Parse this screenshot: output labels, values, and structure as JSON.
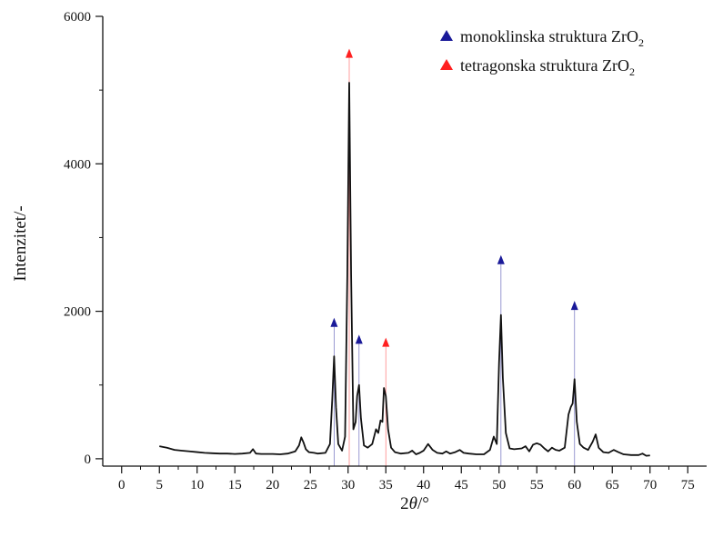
{
  "chart_data": {
    "type": "line",
    "xlabel_main": "2",
    "xlabel_theta": "θ",
    "xlabel_unit": "/°",
    "ylabel": "Intenzitet/-",
    "xlim": [
      -2.5,
      77.5
    ],
    "ylim": [
      -100,
      6000
    ],
    "xticks": [
      0,
      5,
      10,
      15,
      20,
      25,
      30,
      35,
      40,
      45,
      50,
      55,
      60,
      65,
      70,
      75
    ],
    "yticks": [
      0,
      2000,
      4000,
      6000
    ],
    "grid": false,
    "legend_position": "top-right",
    "legend": [
      {
        "label": "monoklinska struktura ZrO",
        "subscript": "2",
        "color": "#1a1a99",
        "marker": "triangle"
      },
      {
        "label": "tetragonska struktura ZrO",
        "subscript": "2",
        "color": "#ff2020",
        "marker": "triangle"
      }
    ],
    "series": [
      {
        "color": "#111111",
        "x": [
          5.0,
          6.0,
          7.0,
          8.0,
          9.0,
          10.0,
          11.0,
          12.0,
          13.0,
          14.0,
          15.0,
          16.0,
          17.0,
          17.4,
          17.8,
          18.5,
          20.0,
          21.0,
          22.0,
          23.0,
          23.5,
          23.8,
          24.1,
          24.4,
          24.8,
          25.5,
          26.0,
          27.0,
          27.6,
          27.9,
          28.15,
          28.4,
          28.7,
          29.2,
          29.6,
          29.9,
          30.15,
          30.4,
          30.7,
          31.0,
          31.2,
          31.45,
          31.7,
          32.1,
          32.6,
          33.2,
          33.7,
          34.0,
          34.3,
          34.55,
          34.75,
          35.0,
          35.3,
          35.7,
          36.2,
          37.0,
          38.0,
          38.5,
          39.0,
          39.5,
          40.0,
          40.6,
          41.2,
          41.8,
          42.5,
          43.0,
          43.5,
          44.2,
          44.8,
          45.3,
          46.0,
          47.0,
          48.0,
          48.8,
          49.3,
          49.7,
          50.0,
          50.25,
          50.5,
          50.9,
          51.4,
          52.0,
          53.0,
          53.5,
          54.0,
          54.5,
          55.0,
          55.5,
          56.0,
          56.5,
          57.0,
          57.5,
          58.0,
          58.7,
          59.2,
          59.5,
          59.75,
          60.0,
          60.3,
          60.7,
          61.2,
          61.8,
          62.4,
          62.8,
          63.2,
          63.8,
          64.5,
          65.2,
          65.8,
          66.5,
          67.5,
          68.5,
          69.0,
          69.5,
          70.0
        ],
        "y": [
          170,
          150,
          120,
          110,
          100,
          90,
          80,
          75,
          70,
          70,
          65,
          70,
          80,
          130,
          70,
          65,
          65,
          60,
          70,
          100,
          180,
          290,
          220,
          130,
          90,
          80,
          70,
          80,
          200,
          800,
          1390,
          700,
          200,
          110,
          300,
          2500,
          5100,
          2500,
          400,
          500,
          850,
          1000,
          550,
          180,
          150,
          200,
          400,
          350,
          520,
          500,
          960,
          850,
          400,
          150,
          90,
          70,
          80,
          110,
          60,
          80,
          110,
          200,
          120,
          80,
          70,
          100,
          70,
          90,
          120,
          80,
          70,
          60,
          60,
          120,
          300,
          200,
          1300,
          1950,
          1100,
          350,
          140,
          130,
          140,
          170,
          100,
          190,
          210,
          190,
          140,
          100,
          150,
          120,
          110,
          150,
          600,
          700,
          750,
          1080,
          500,
          200,
          150,
          120,
          230,
          330,
          150,
          90,
          80,
          120,
          90,
          60,
          50,
          50,
          70,
          40,
          45
        ]
      }
    ],
    "markers": [
      {
        "x": 28.15,
        "y": 1850,
        "phase": "monoklinska",
        "color": "#1a1a99"
      },
      {
        "x": 30.15,
        "y": 5500,
        "phase": "tetragonska",
        "color": "#ff2020"
      },
      {
        "x": 31.45,
        "y": 1620,
        "phase": "monoklinska",
        "color": "#1a1a99"
      },
      {
        "x": 35.0,
        "y": 1580,
        "phase": "tetragonska",
        "color": "#ff2020"
      },
      {
        "x": 50.25,
        "y": 2700,
        "phase": "monoklinska",
        "color": "#1a1a99"
      },
      {
        "x": 60.0,
        "y": 2080,
        "phase": "monoklinska",
        "color": "#1a1a99"
      }
    ]
  }
}
